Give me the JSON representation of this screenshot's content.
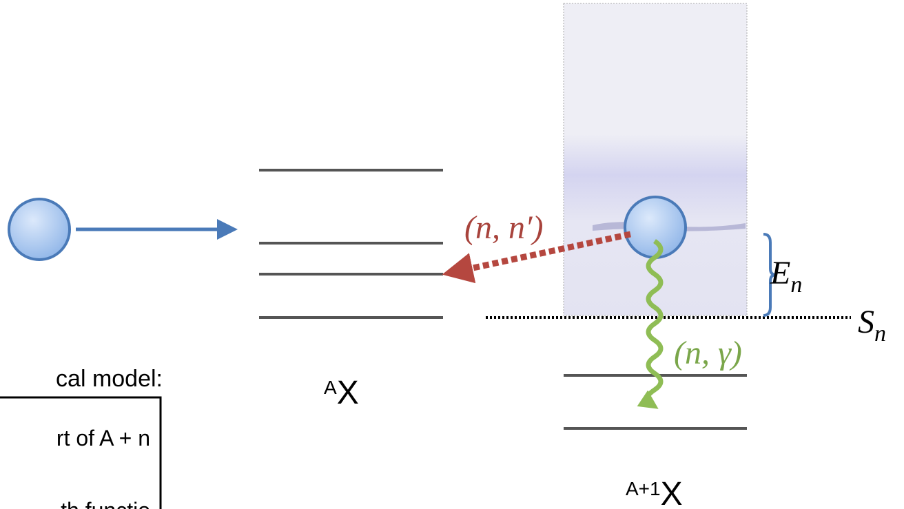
{
  "target": {
    "mass": "A",
    "symbol": "X"
  },
  "compound": {
    "mass": "A+1",
    "symbol": "X"
  },
  "channels": {
    "inelastic": "(n, n′)",
    "capture": "(n, γ)"
  },
  "energies": {
    "excitation": {
      "symbol": "E",
      "subscript": "n"
    },
    "separation": {
      "symbol": "S",
      "subscript": "n"
    }
  },
  "sidebar": {
    "heading": "cal model:",
    "lines": [
      "rt of A + n",
      "th functio"
    ]
  }
}
